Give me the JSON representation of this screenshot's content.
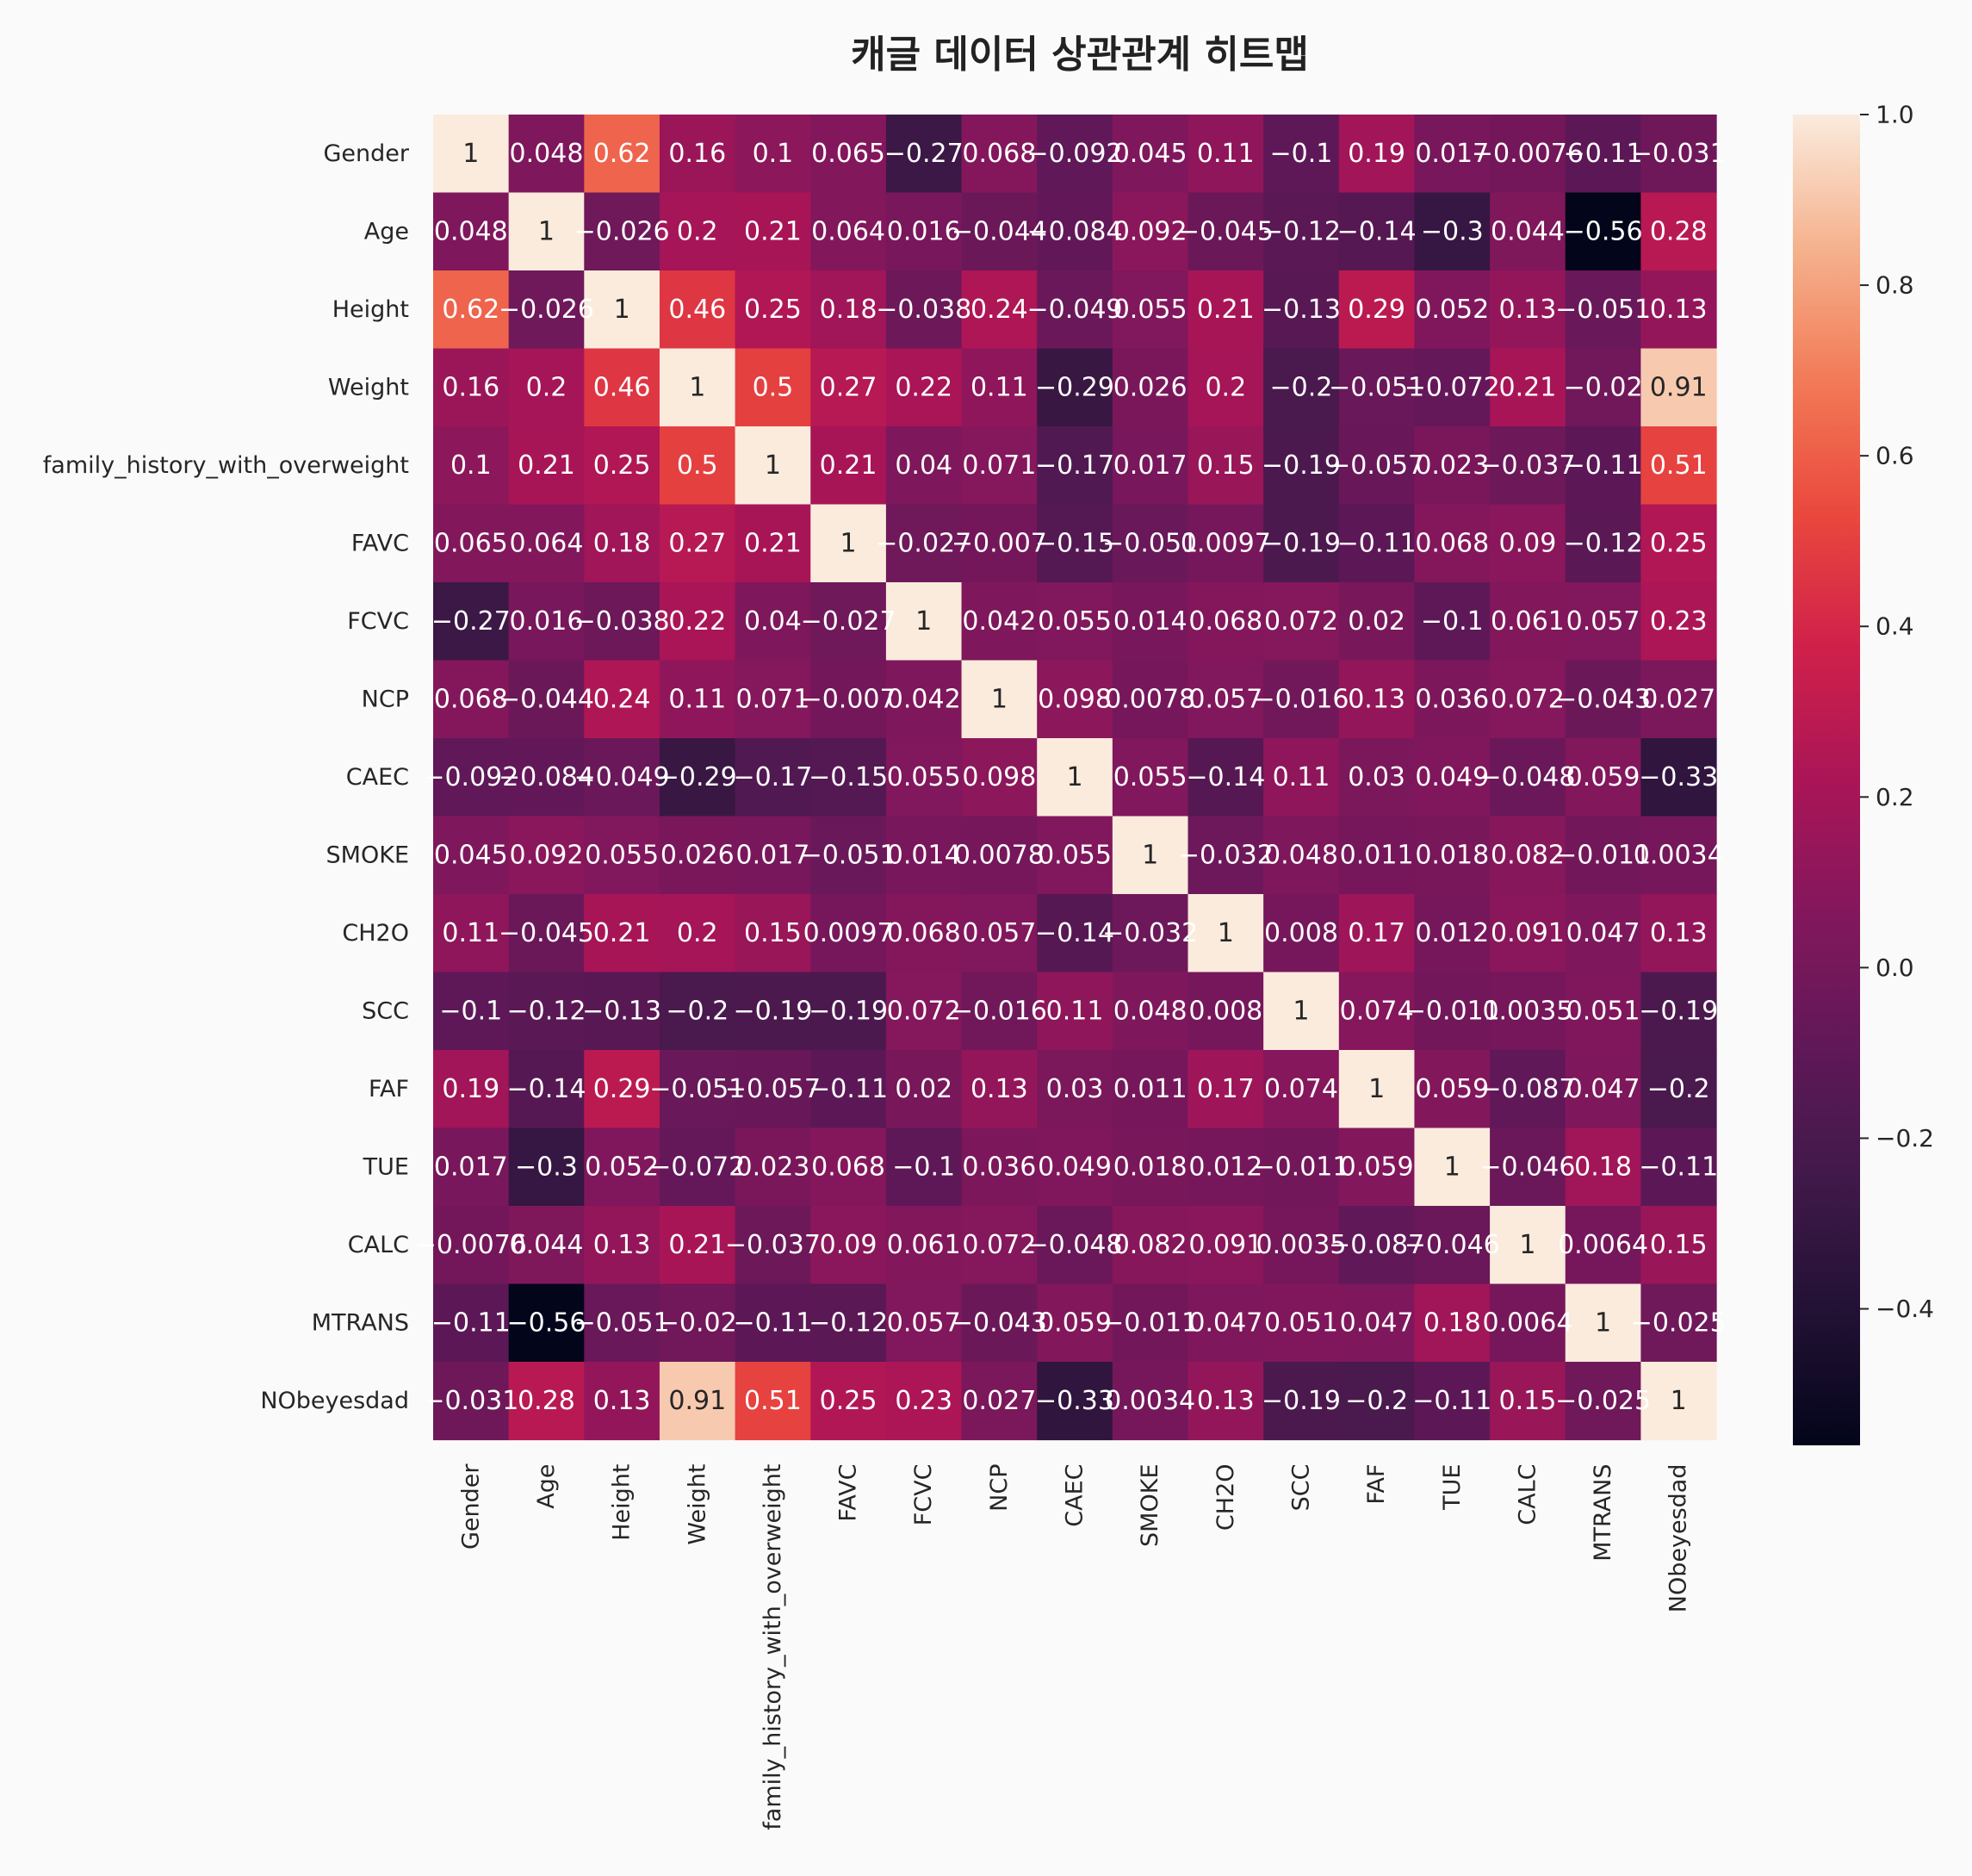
{
  "chart_data": {
    "type": "heatmap",
    "title": "캐글 데이터 상관관계 히트맵",
    "labels": [
      "Gender",
      "Age",
      "Height",
      "Weight",
      "family_history_with_overweight",
      "FAVC",
      "FCVC",
      "NCP",
      "CAEC",
      "SMOKE",
      "CH2O",
      "SCC",
      "FAF",
      "TUE",
      "CALC",
      "MTRANS",
      "NObeyesdad"
    ],
    "matrix": [
      [
        1,
        0.048,
        0.62,
        0.16,
        0.1,
        0.065,
        -0.27,
        0.068,
        -0.092,
        0.045,
        0.11,
        -0.1,
        0.19,
        0.017,
        -0.0076,
        -0.11,
        -0.031
      ],
      [
        0.048,
        1,
        -0.026,
        0.2,
        0.21,
        0.064,
        0.016,
        -0.044,
        -0.084,
        0.092,
        -0.045,
        -0.12,
        -0.14,
        -0.3,
        0.044,
        -0.56,
        0.28
      ],
      [
        0.62,
        -0.026,
        1,
        0.46,
        0.25,
        0.18,
        -0.038,
        0.24,
        -0.049,
        0.055,
        0.21,
        -0.13,
        0.29,
        0.052,
        0.13,
        -0.051,
        0.13
      ],
      [
        0.16,
        0.2,
        0.46,
        1,
        0.5,
        0.27,
        0.22,
        0.11,
        -0.29,
        0.026,
        0.2,
        -0.2,
        -0.051,
        -0.072,
        0.21,
        -0.02,
        0.91
      ],
      [
        0.1,
        0.21,
        0.25,
        0.5,
        1,
        0.21,
        0.04,
        0.071,
        -0.17,
        0.017,
        0.15,
        -0.19,
        -0.057,
        0.023,
        -0.037,
        -0.11,
        0.51
      ],
      [
        0.065,
        0.064,
        0.18,
        0.27,
        0.21,
        1,
        -0.027,
        -0.007,
        -0.15,
        -0.051,
        0.0097,
        -0.19,
        -0.11,
        0.068,
        0.09,
        -0.12,
        0.25
      ],
      [
        -0.27,
        0.016,
        -0.038,
        0.22,
        0.04,
        -0.027,
        1,
        0.042,
        0.055,
        0.014,
        0.068,
        0.072,
        0.02,
        -0.1,
        0.061,
        0.057,
        0.23
      ],
      [
        0.068,
        -0.044,
        0.24,
        0.11,
        0.071,
        -0.007,
        0.042,
        1,
        0.098,
        0.0078,
        0.057,
        -0.016,
        0.13,
        0.036,
        0.072,
        -0.043,
        0.027
      ],
      [
        -0.092,
        -0.084,
        -0.049,
        -0.29,
        -0.17,
        -0.15,
        0.055,
        0.098,
        1,
        0.055,
        -0.14,
        0.11,
        0.03,
        0.049,
        -0.048,
        0.059,
        -0.33
      ],
      [
        0.045,
        0.092,
        0.055,
        0.026,
        0.017,
        -0.051,
        0.014,
        0.0078,
        0.055,
        1,
        -0.032,
        0.048,
        0.011,
        0.018,
        0.082,
        -0.011,
        0.0034
      ],
      [
        0.11,
        -0.045,
        0.21,
        0.2,
        0.15,
        0.0097,
        0.068,
        0.057,
        -0.14,
        -0.032,
        1,
        0.008,
        0.17,
        0.012,
        0.091,
        0.047,
        0.13
      ],
      [
        -0.1,
        -0.12,
        -0.13,
        -0.2,
        -0.19,
        -0.19,
        0.072,
        -0.016,
        0.11,
        0.048,
        0.008,
        1,
        0.074,
        -0.011,
        0.0035,
        0.051,
        -0.19
      ],
      [
        0.19,
        -0.14,
        0.29,
        -0.051,
        -0.057,
        -0.11,
        0.02,
        0.13,
        0.03,
        0.011,
        0.17,
        0.074,
        1,
        0.059,
        -0.087,
        0.047,
        -0.2
      ],
      [
        0.017,
        -0.3,
        0.052,
        -0.072,
        0.023,
        0.068,
        -0.1,
        0.036,
        0.049,
        0.018,
        0.012,
        -0.011,
        0.059,
        1,
        -0.046,
        0.18,
        -0.11
      ],
      [
        -0.0076,
        0.044,
        0.13,
        0.21,
        -0.037,
        0.09,
        0.061,
        0.072,
        -0.048,
        0.082,
        0.091,
        0.0035,
        -0.087,
        -0.046,
        1,
        0.0064,
        0.15
      ],
      [
        -0.11,
        -0.56,
        -0.051,
        -0.02,
        -0.11,
        -0.12,
        0.057,
        -0.043,
        0.059,
        -0.011,
        0.047,
        0.051,
        0.047,
        0.18,
        0.0064,
        1,
        -0.025
      ],
      [
        -0.031,
        0.28,
        0.13,
        0.91,
        0.51,
        0.25,
        0.23,
        0.027,
        -0.33,
        0.0034,
        0.13,
        -0.19,
        -0.2,
        -0.11,
        0.15,
        -0.025,
        1
      ]
    ],
    "colorbar": {
      "min": -0.56,
      "max": 1.0,
      "ticks": [
        1.0,
        0.8,
        0.6,
        0.4,
        0.2,
        0.0,
        -0.2,
        -0.4
      ],
      "tick_labels": [
        "1.0",
        "0.8",
        "0.6",
        "0.4",
        "0.2",
        "0.0",
        "−0.2",
        "−0.4"
      ],
      "colormap": "rocket"
    },
    "annotated": true,
    "grid": false
  }
}
